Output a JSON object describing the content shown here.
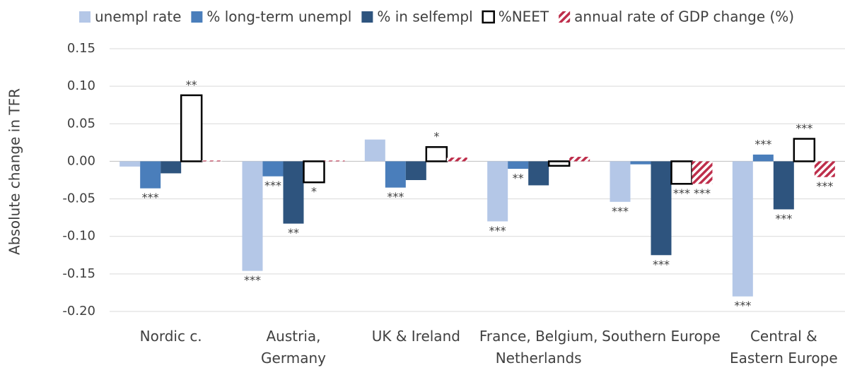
{
  "chart_data": {
    "type": "bar",
    "y_label": "Absolute change in TFR",
    "categories": [
      "Nordic c.",
      "Austria, Germany",
      "UK & Ireland",
      "France, Belgium, Netherlands",
      "Southern Europe",
      "Central & Eastern Europe"
    ],
    "series": [
      {
        "name": "unempl rate",
        "color": "#b4c7e7",
        "values": [
          -0.007,
          -0.146,
          0.029,
          -0.08,
          -0.054,
          -0.18
        ],
        "significance": [
          null,
          "***",
          null,
          "***",
          "***",
          "***"
        ]
      },
      {
        "name": "% long-term unempl",
        "color": "#4a7ebb",
        "values": [
          -0.036,
          -0.02,
          -0.035,
          -0.01,
          -0.004,
          0.009
        ],
        "significance": [
          "***",
          "***",
          "***",
          "**",
          null,
          "***"
        ]
      },
      {
        "name": "% in selfempl",
        "color": "#2e547e",
        "values": [
          -0.016,
          -0.083,
          -0.025,
          -0.032,
          -0.125,
          -0.064
        ],
        "significance": [
          null,
          "**",
          null,
          null,
          "***",
          "***"
        ]
      },
      {
        "name": "%NEET",
        "color": "#000000",
        "values": [
          0.088,
          -0.028,
          0.019,
          -0.006,
          -0.03,
          0.03
        ],
        "significance": [
          "**",
          "*",
          "*",
          null,
          "***",
          "***"
        ]
      },
      {
        "name": "annual rate of GDP change (%)",
        "color": "#be2e4b",
        "values": [
          0.001,
          0.001,
          0.005,
          0.006,
          -0.03,
          -0.021
        ],
        "significance": [
          null,
          null,
          null,
          null,
          "***",
          "***"
        ]
      }
    ],
    "ylim": [
      -0.2,
      0.15
    ],
    "yticks": [
      {
        "value": -0.2,
        "label": "-0.20"
      },
      -0.15,
      {
        "value": -0.1,
        "label": "-0.10"
      },
      -0.05,
      {
        "value": 0,
        "label": "0.00"
      },
      0.05,
      {
        "value": 0.1,
        "label": "0.10"
      },
      0.15
    ],
    "grid": true
  }
}
